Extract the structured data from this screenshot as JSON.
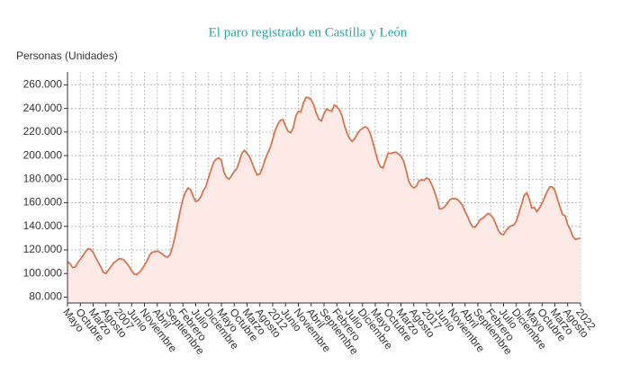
{
  "chart_data": {
    "type": "line",
    "title": "El paro registrado en Castilla y León",
    "y_label": "Personas (Unidades)",
    "categories": [
      "Mayo",
      null,
      null,
      null,
      null,
      "Octubre",
      null,
      null,
      null,
      null,
      "Marzo",
      null,
      null,
      null,
      null,
      "Agosto",
      null,
      null,
      null,
      null,
      "2007",
      null,
      null,
      null,
      null,
      "Junio",
      null,
      null,
      null,
      null,
      "Noviembre",
      null,
      null,
      null,
      null,
      "Abril",
      null,
      null,
      null,
      null,
      "Septiembre",
      null,
      null,
      null,
      null,
      "Febrero",
      null,
      null,
      null,
      null,
      "Julio",
      null,
      null,
      null,
      null,
      "Diciembre",
      null,
      null,
      null,
      null,
      "Mayo",
      null,
      null,
      null,
      null,
      "Octubre",
      null,
      null,
      null,
      null,
      "Marzo",
      null,
      null,
      null,
      null,
      "Agosto",
      null,
      null,
      null,
      null,
      "2012",
      null,
      null,
      null,
      null,
      "Junio",
      null,
      null,
      null,
      null,
      "Noviembre",
      null,
      null,
      null,
      null,
      "Abril",
      null,
      null,
      null,
      null,
      "Septiembre",
      null,
      null,
      null,
      null,
      "Febrero",
      null,
      null,
      null,
      null,
      "Julio",
      null,
      null,
      null,
      null,
      "Diciembre",
      null,
      null,
      null,
      null,
      "Mayo",
      null,
      null,
      null,
      null,
      "Octubre",
      null,
      null,
      null,
      null,
      "Marzo",
      null,
      null,
      null,
      null,
      "Agosto",
      null,
      null,
      null,
      null,
      "2017",
      null,
      null,
      null,
      null,
      "Junio",
      null,
      null,
      null,
      null,
      "Noviembre",
      null,
      null,
      null,
      null,
      "Abril",
      null,
      null,
      null,
      null,
      "Septiembre",
      null,
      null,
      null,
      null,
      "Febrero",
      null,
      null,
      null,
      null,
      "Julio",
      null,
      null,
      null,
      null,
      "Diciembre",
      null,
      null,
      null,
      null,
      "Mayo",
      null,
      null,
      null,
      null,
      "Octubre",
      null,
      null,
      null,
      null,
      "Marzo",
      null,
      null,
      null,
      null,
      "Agosto",
      null,
      null,
      null,
      null,
      "2022"
    ],
    "values": [
      110000,
      108500,
      105000,
      105500,
      109000,
      112000,
      115000,
      118500,
      121000,
      120500,
      118000,
      113500,
      109500,
      105500,
      101000,
      100000,
      103000,
      106000,
      109000,
      110500,
      112500,
      112500,
      111500,
      109000,
      106000,
      102500,
      99500,
      99000,
      101000,
      103500,
      107000,
      110500,
      115500,
      118000,
      118500,
      119000,
      118000,
      116500,
      114500,
      114000,
      116000,
      123000,
      132000,
      143000,
      154000,
      163000,
      169000,
      172500,
      171000,
      165500,
      161000,
      162000,
      165000,
      170500,
      174000,
      181500,
      188000,
      194500,
      197000,
      198000,
      196000,
      186000,
      181500,
      180000,
      183000,
      186500,
      189000,
      195000,
      202000,
      204500,
      202000,
      199000,
      193500,
      188000,
      183500,
      184500,
      189500,
      196500,
      202000,
      206500,
      214000,
      221500,
      226500,
      230000,
      230500,
      225000,
      220500,
      219500,
      223500,
      233500,
      237500,
      237000,
      245000,
      249500,
      249000,
      247500,
      243000,
      236000,
      231000,
      229500,
      235500,
      239500,
      238500,
      237500,
      243000,
      241500,
      239000,
      234000,
      225500,
      219000,
      214500,
      212000,
      214500,
      218500,
      221500,
      223000,
      224500,
      223500,
      219000,
      212000,
      203500,
      195500,
      190500,
      189500,
      196000,
      202000,
      202000,
      202500,
      203000,
      201500,
      199500,
      195500,
      188000,
      178500,
      174500,
      172500,
      174000,
      178500,
      179500,
      179000,
      181000,
      180000,
      175500,
      170000,
      163500,
      155000,
      155000,
      156500,
      159000,
      162500,
      163500,
      163500,
      163000,
      160500,
      158000,
      152500,
      148500,
      143000,
      139500,
      139500,
      142500,
      146000,
      147000,
      149000,
      151000,
      149500,
      147000,
      142000,
      136500,
      133500,
      133000,
      136500,
      139000,
      140500,
      141000,
      144500,
      151500,
      158500,
      166000,
      168500,
      163500,
      155500,
      156000,
      152500,
      155500,
      159500,
      164500,
      169500,
      173500,
      173500,
      170500,
      163500,
      156500,
      150000,
      149000,
      141500,
      137500,
      131500,
      129000,
      129500,
      130000
    ],
    "color": "#d9744f",
    "fill_color": "#fde9e6",
    "ylim": [
      75000,
      271000
    ],
    "yticks": [
      {
        "value": 80000,
        "label": "80.000"
      },
      {
        "value": 100000,
        "label": "100.000"
      },
      {
        "value": 120000,
        "label": "120.000"
      },
      {
        "value": 140000,
        "label": "140.000"
      },
      {
        "value": 160000,
        "label": "160.000"
      },
      {
        "value": 180000,
        "label": "180.000"
      },
      {
        "value": 200000,
        "label": "200.000"
      },
      {
        "value": 220000,
        "label": "220.000"
      },
      {
        "value": 240000,
        "label": "240.000"
      },
      {
        "value": 260000,
        "label": "260.000"
      }
    ],
    "grid": true
  }
}
